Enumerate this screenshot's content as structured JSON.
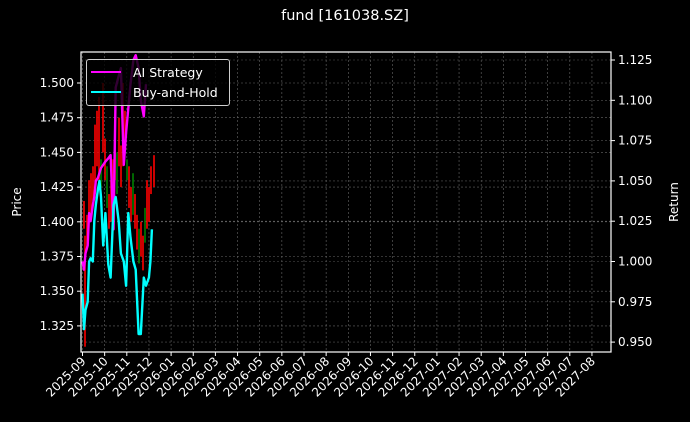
{
  "chart_data": {
    "type": "line",
    "title": "fund [161038.SZ]",
    "xlabel": "",
    "ylabel": "Price",
    "ylabel_right": "Return",
    "x_tick_labels": [
      "2025-09",
      "2025-10",
      "2025-11",
      "2025-12",
      "2026-01",
      "2026-02",
      "2026-03",
      "2026-04",
      "2026-05",
      "2026-06",
      "2026-07",
      "2026-08",
      "2026-09",
      "2026-10",
      "2026-11",
      "2026-12",
      "2027-01",
      "2027-02",
      "2027-03",
      "2027-04",
      "2027-05",
      "2027-06",
      "2027-07",
      "2027-08"
    ],
    "y_left_ticks": [
      "1.325",
      "1.350",
      "1.375",
      "1.400",
      "1.425",
      "1.450",
      "1.475",
      "1.500"
    ],
    "y_right_ticks": [
      "0.950",
      "0.975",
      "1.000",
      "1.025",
      "1.050",
      "1.075",
      "1.100",
      "1.125"
    ],
    "ylim_left": [
      1.307,
      1.522
    ],
    "ylim_right": [
      0.945,
      1.13
    ],
    "grid": true,
    "legend_position": "upper left",
    "series": [
      {
        "name": "AI Strategy",
        "color": "#ff00ff",
        "axis": "right",
        "x_dates": [
          "2025-09-01",
          "2025-09-03",
          "2025-09-05",
          "2025-09-08",
          "2025-09-10",
          "2025-09-12",
          "2025-09-15",
          "2025-09-17",
          "2025-09-19",
          "2025-09-22",
          "2025-09-24",
          "2025-09-26",
          "2025-09-29",
          "2025-10-02",
          "2025-10-06",
          "2025-10-09",
          "2025-10-13",
          "2025-10-16",
          "2025-10-20",
          "2025-10-23",
          "2025-10-27",
          "2025-10-30",
          "2025-11-03",
          "2025-11-06",
          "2025-11-10",
          "2025-11-13",
          "2025-11-17",
          "2025-11-20",
          "2025-11-24",
          "2025-11-27"
        ],
        "values": [
          1.0,
          0.995,
          1.005,
          1.01,
          1.03,
          1.025,
          1.035,
          1.04,
          1.05,
          1.052,
          1.055,
          1.058,
          1.06,
          1.062,
          1.064,
          1.066,
          1.02,
          1.108,
          1.115,
          1.12,
          1.06,
          1.08,
          1.095,
          1.11,
          1.125,
          1.128,
          1.12,
          1.1,
          1.09,
          1.11
        ]
      },
      {
        "name": "Buy-and-Hold",
        "color": "#00ffff",
        "axis": "right",
        "x_dates": [
          "2025-09-01",
          "2025-09-03",
          "2025-09-05",
          "2025-09-08",
          "2025-09-10",
          "2025-09-12",
          "2025-09-15",
          "2025-09-17",
          "2025-09-19",
          "2025-09-22",
          "2025-09-24",
          "2025-09-26",
          "2025-09-29",
          "2025-10-02",
          "2025-10-06",
          "2025-10-09",
          "2025-10-13",
          "2025-10-16",
          "2025-10-20",
          "2025-10-23",
          "2025-10-27",
          "2025-10-30",
          "2025-11-03",
          "2025-11-06",
          "2025-11-10",
          "2025-11-13",
          "2025-11-17",
          "2025-11-20",
          "2025-11-24",
          "2025-11-27",
          "2025-12-01",
          "2025-12-03",
          "2025-12-05"
        ],
        "values": [
          0.98,
          0.958,
          0.97,
          0.975,
          1.0,
          1.002,
          1.0,
          1.025,
          1.035,
          1.045,
          1.05,
          1.04,
          1.01,
          1.03,
          0.998,
          0.99,
          1.035,
          1.04,
          1.025,
          1.005,
          1.0,
          0.985,
          1.03,
          1.015,
          1.0,
          0.995,
          0.955,
          0.955,
          0.99,
          0.985,
          0.99,
          1.0,
          1.02
        ]
      },
      {
        "name": "Price candlesticks",
        "type": "candlestick",
        "axis": "left",
        "up_color": "#008000",
        "down_color": "#ff0000",
        "price_range": [
          1.307,
          1.51
        ]
      }
    ]
  }
}
